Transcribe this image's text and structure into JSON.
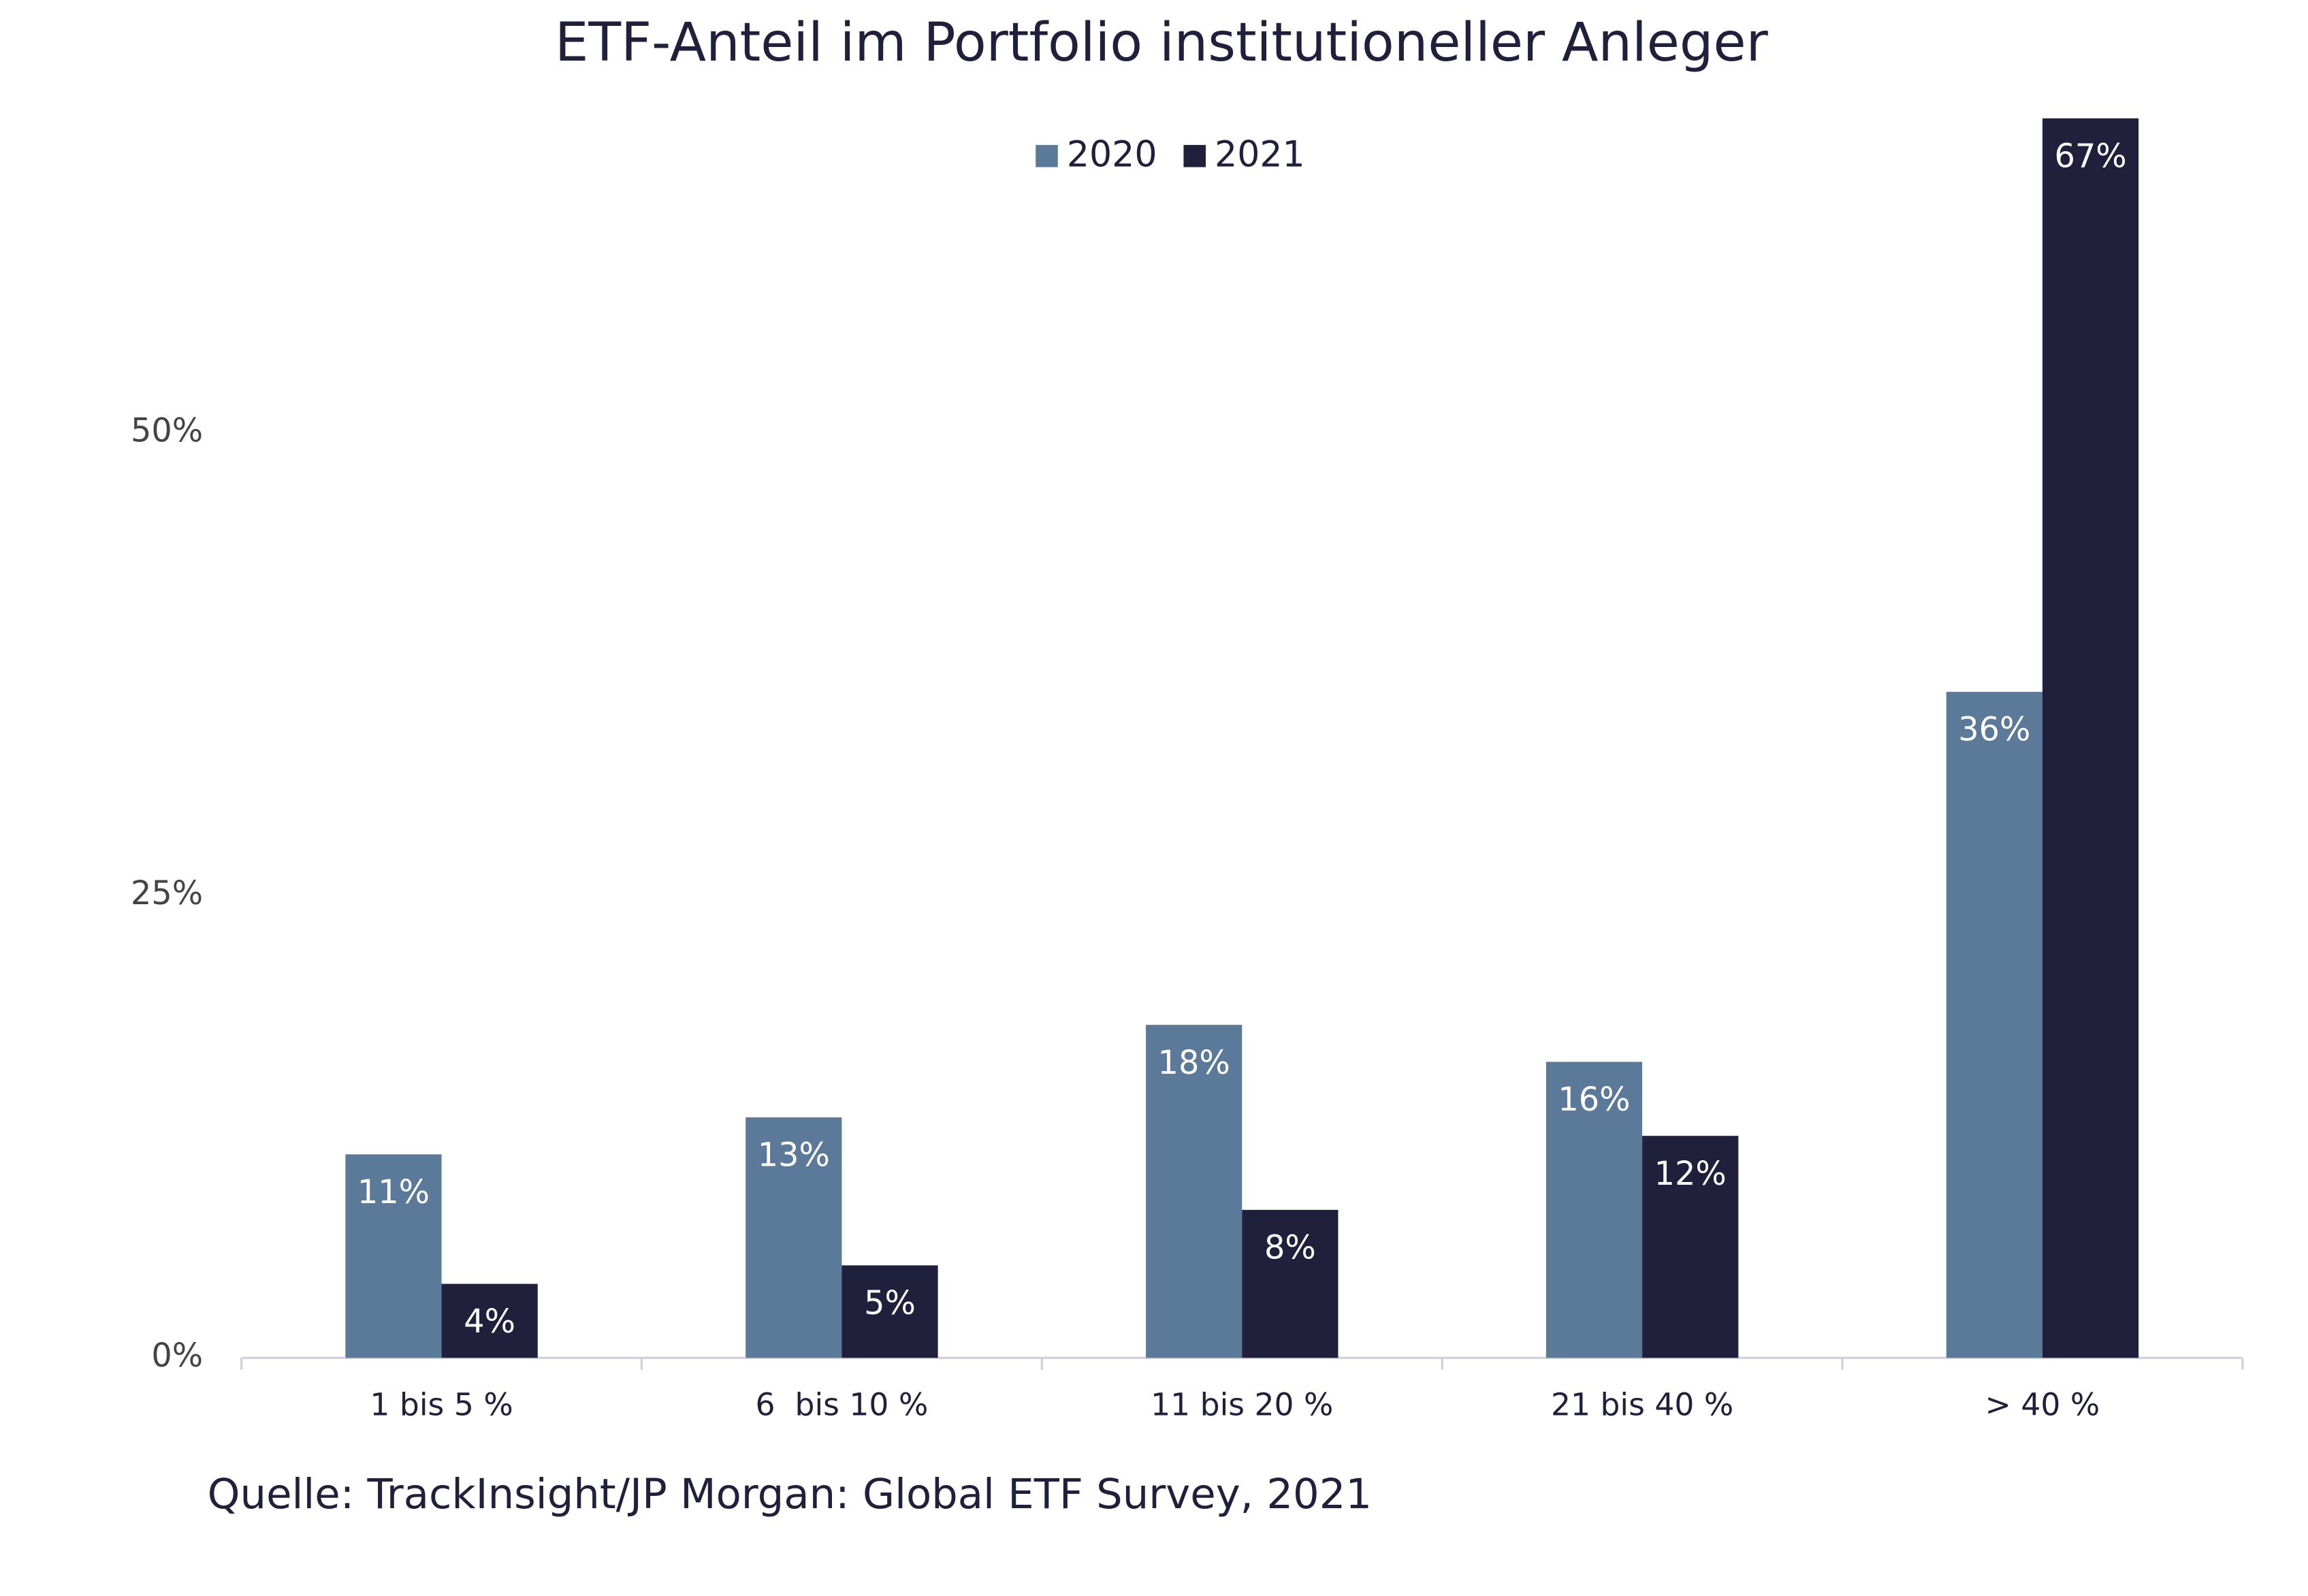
{
  "chart_data": {
    "type": "bar",
    "title": "ETF-Anteil im Portfolio institutioneller Anleger",
    "source": "Quelle: TrackInsight/JP Morgan: Global ETF Survey, 2021",
    "categories": [
      "1 bis 5 %",
      "6  bis 10 %",
      "11 bis 20 %",
      "21 bis 40 %",
      "> 40 %"
    ],
    "series": [
      {
        "name": "2020",
        "color": "#5b7a99",
        "values": [
          11,
          13,
          18,
          16,
          36
        ],
        "value_labels": [
          "11%",
          "13%",
          "18%",
          "16%",
          "36%"
        ]
      },
      {
        "name": "2021",
        "color": "#20203d",
        "values": [
          4,
          5,
          8,
          12,
          67
        ],
        "value_labels": [
          "4%",
          "5%",
          "8%",
          "12%",
          "67%"
        ]
      }
    ],
    "ylim": [
      0,
      67
    ],
    "yticks": [
      {
        "value": 0,
        "label": "0%"
      },
      {
        "value": 25,
        "label": "25%"
      },
      {
        "value": 50,
        "label": "50%"
      }
    ],
    "grid": false,
    "legend": "top"
  }
}
